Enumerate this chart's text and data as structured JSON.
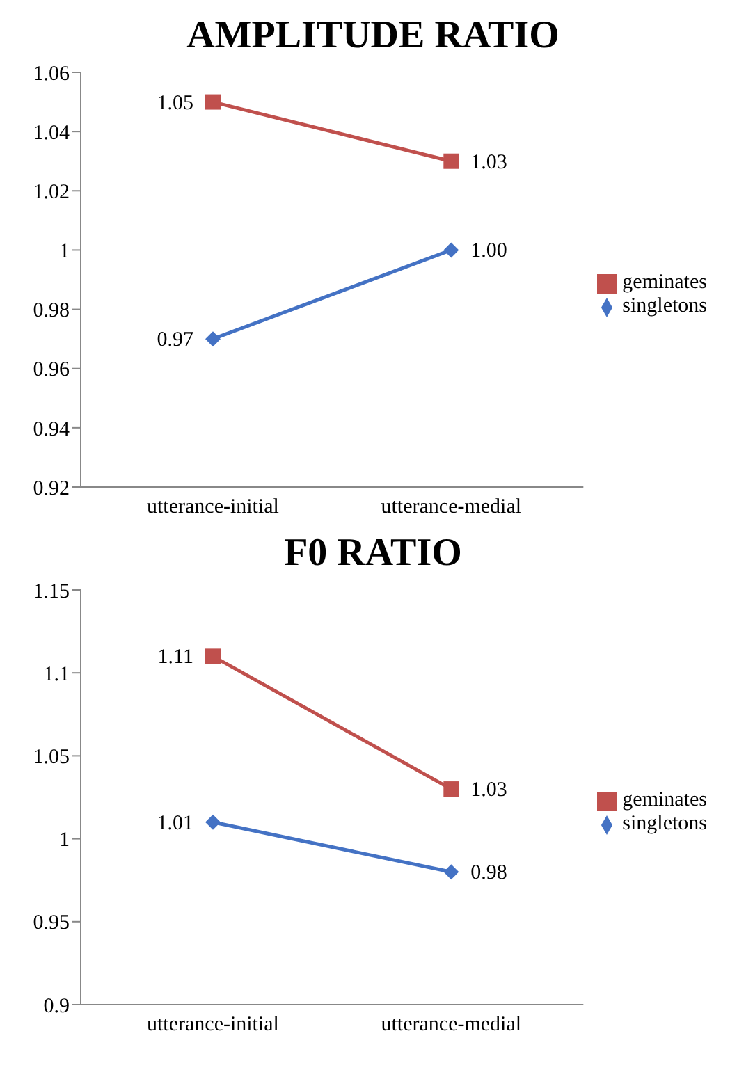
{
  "chart_data": [
    {
      "type": "line",
      "title": "AMPLITUDE RATIO",
      "categories": [
        "utterance-initial",
        "utterance-medial"
      ],
      "series": [
        {
          "name": "singletons",
          "color": "#4472c4",
          "marker": "diamond",
          "values": [
            0.97,
            1.0
          ],
          "value_labels": [
            "0.97",
            "1.00"
          ]
        },
        {
          "name": "geminates",
          "color": "#c0504d",
          "marker": "square",
          "values": [
            1.05,
            1.03
          ],
          "value_labels": [
            "1.05",
            "1.03"
          ]
        }
      ],
      "ylim": [
        0.92,
        1.06
      ],
      "yticks": [
        0.92,
        0.94,
        0.96,
        0.98,
        1,
        1.02,
        1.04,
        1.06
      ],
      "grid": false,
      "legend": "right"
    },
    {
      "type": "line",
      "title": "F0 RATIO",
      "categories": [
        "utterance-initial",
        "utterance-medial"
      ],
      "series": [
        {
          "name": "singletons",
          "color": "#4472c4",
          "marker": "diamond",
          "values": [
            1.01,
            0.98
          ],
          "value_labels": [
            "1.01",
            "0.98"
          ]
        },
        {
          "name": "geminates",
          "color": "#c0504d",
          "marker": "square",
          "values": [
            1.11,
            1.03
          ],
          "value_labels": [
            "1.11",
            "1.03"
          ]
        }
      ],
      "ylim": [
        0.9,
        1.15
      ],
      "yticks": [
        0.9,
        0.95,
        1,
        1.05,
        1.1,
        1.15
      ],
      "grid": false,
      "legend": "right"
    }
  ]
}
